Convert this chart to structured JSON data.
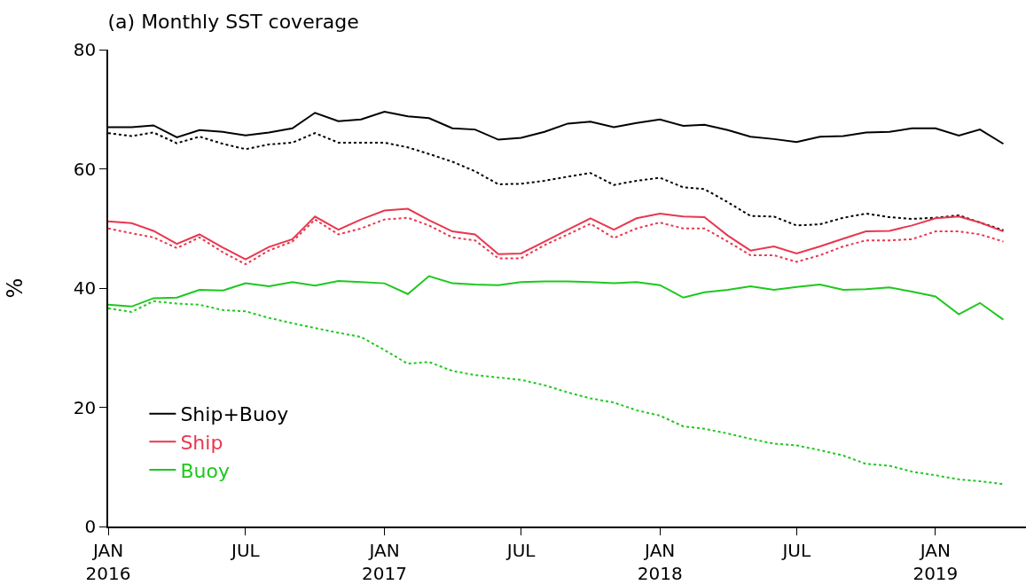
{
  "chart_data": {
    "type": "line",
    "title": "(a) Monthly SST coverage",
    "ylabel": "%",
    "x": [
      "2016-01",
      "2016-02",
      "2016-03",
      "2016-04",
      "2016-05",
      "2016-06",
      "2016-07",
      "2016-08",
      "2016-09",
      "2016-10",
      "2016-11",
      "2016-12",
      "2017-01",
      "2017-02",
      "2017-03",
      "2017-04",
      "2017-05",
      "2017-06",
      "2017-07",
      "2017-08",
      "2017-09",
      "2017-10",
      "2017-11",
      "2017-12",
      "2018-01",
      "2018-02",
      "2018-03",
      "2018-04",
      "2018-05",
      "2018-06",
      "2018-07",
      "2018-08",
      "2018-09",
      "2018-10",
      "2018-11",
      "2018-12",
      "2019-01",
      "2019-02",
      "2019-03",
      "2019-04"
    ],
    "series": [
      {
        "name": "Ship+Buoy",
        "color": "#000000",
        "line_style": "solid",
        "values": [
          67,
          67,
          67.3,
          65.3,
          66.5,
          66.2,
          65.6,
          66.1,
          66.8,
          69.4,
          68,
          68.3,
          69.6,
          68.8,
          68.5,
          66.8,
          66.6,
          64.9,
          65.2,
          66.2,
          67.6,
          67.9,
          67,
          67.7,
          68.3,
          67.2,
          67.4,
          66.5,
          65.4,
          65,
          64.5,
          65.4,
          65.5,
          66.1,
          66.2,
          66.8,
          66.8,
          65.6,
          66.6,
          64.2
        ]
      },
      {
        "color": "#000000",
        "line_style": "dotted",
        "values": [
          66,
          65.5,
          66.1,
          64.3,
          65.4,
          64.2,
          63.3,
          64.1,
          64.4,
          66,
          64.4,
          64.4,
          64.4,
          63.6,
          62.5,
          61.2,
          59.6,
          57.4,
          57.5,
          58,
          58.7,
          59.3,
          57.3,
          58,
          58.5,
          56.9,
          56.6,
          54.4,
          52.1,
          52,
          50.5,
          50.7,
          51.8,
          52.5,
          51.9,
          51.6,
          51.8,
          52.2,
          51,
          49.7
        ]
      },
      {
        "name": "Ship",
        "color": "#e8374f",
        "line_style": "solid",
        "values": [
          51.2,
          50.9,
          49.6,
          47.4,
          49,
          46.8,
          44.8,
          46.9,
          48.2,
          52,
          49.8,
          51.5,
          53,
          53.3,
          51.4,
          49.5,
          49,
          45.7,
          45.8,
          47.8,
          49.8,
          51.7,
          49.8,
          51.7,
          52.5,
          52,
          51.9,
          48.8,
          46.3,
          47,
          45.8,
          47,
          48.3,
          49.5,
          49.6,
          50.5,
          51.7,
          52,
          51,
          49.5
        ]
      },
      {
        "color": "#e8374f",
        "line_style": "dotted",
        "values": [
          50,
          49.2,
          48.5,
          46.7,
          48.5,
          46,
          44,
          46.3,
          47.8,
          51.5,
          49,
          50,
          51.5,
          51.8,
          50.5,
          48.5,
          48,
          45,
          45,
          47.2,
          49,
          50.8,
          48.4,
          50,
          51,
          50,
          50,
          47.8,
          45.5,
          45.5,
          44.4,
          45.5,
          47,
          48,
          48,
          48.2,
          49.5,
          49.5,
          49,
          47.8
        ]
      },
      {
        "name": "Buoy",
        "color": "#1ec81e",
        "line_style": "solid",
        "values": [
          37.2,
          36.9,
          38.3,
          38.4,
          39.7,
          39.6,
          40.8,
          40.3,
          41,
          40.4,
          41.2,
          41,
          40.8,
          39,
          42,
          40.8,
          40.6,
          40.5,
          41,
          41.1,
          41.1,
          41,
          40.8,
          41,
          40.5,
          38.4,
          39.3,
          39.7,
          40.3,
          39.7,
          40.2,
          40.6,
          39.7,
          39.8,
          40.1,
          39.4,
          38.6,
          35.6,
          37.5,
          34.7
        ]
      },
      {
        "color": "#1ec81e",
        "line_style": "dotted",
        "values": [
          36.6,
          36,
          37.8,
          37.4,
          37.2,
          36.3,
          36.1,
          35,
          34.1,
          33.3,
          32.5,
          31.8,
          29.6,
          27.3,
          27.6,
          26.1,
          25.4,
          25,
          24.6,
          23.7,
          22.5,
          21.5,
          20.8,
          19.5,
          18.6,
          16.8,
          16.4,
          15.6,
          14.7,
          13.9,
          13.6,
          12.8,
          11.9,
          10.5,
          10.2,
          9.2,
          8.6,
          7.9,
          7.6,
          7.1
        ]
      }
    ],
    "xlim": [
      "2016-01-01",
      "2019-05-01"
    ],
    "xticks": [
      {
        "value": "2016-01",
        "label": "JAN\n2016"
      },
      {
        "value": "2016-07",
        "label": "JUL"
      },
      {
        "value": "2017-01",
        "label": "JAN\n2017"
      },
      {
        "value": "2017-07",
        "label": "JUL"
      },
      {
        "value": "2018-01",
        "label": "JAN\n2018"
      },
      {
        "value": "2018-07",
        "label": "JUL"
      },
      {
        "value": "2019-01",
        "label": "JAN\n2019"
      }
    ],
    "ylim": [
      0,
      80
    ],
    "yticks": [
      0,
      20,
      40,
      60,
      80
    ],
    "legend": "bottom left",
    "marker": "none"
  }
}
